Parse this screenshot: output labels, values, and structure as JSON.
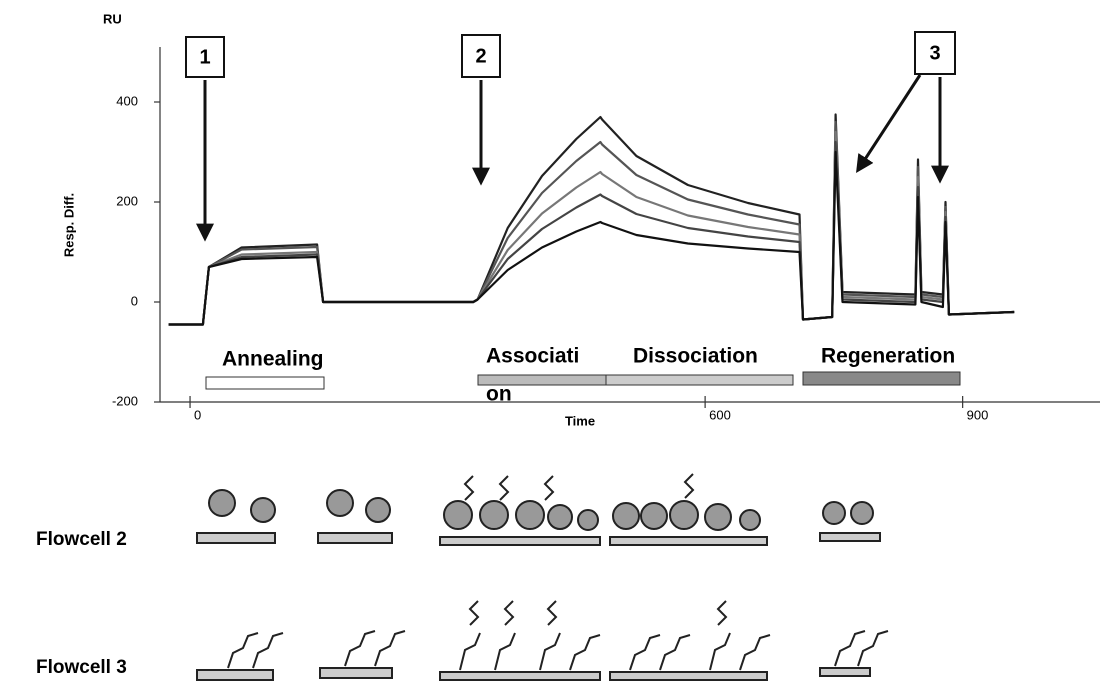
{
  "chart_data": {
    "type": "line",
    "y_axis_unit": "RU",
    "ylabel": "Resp. Diff.",
    "xlabel": "Time",
    "xlim": [
      -35,
      1060
    ],
    "ylim": [
      -200,
      510
    ],
    "xticks": [
      0,
      600,
      900
    ],
    "yticks": [
      -200,
      0,
      200,
      400
    ],
    "x": [
      -25,
      15,
      22,
      60,
      148,
      155,
      330,
      335,
      370,
      410,
      450,
      478,
      480,
      520,
      580,
      650,
      710,
      714,
      748,
      752,
      760,
      845,
      848,
      852,
      877,
      880,
      884,
      960
    ],
    "series": [
      {
        "color": "#222222",
        "values": [
          -45,
          -45,
          70,
          109,
          115,
          0,
          0,
          5,
          148,
          252,
          326,
          370,
          365,
          292,
          234,
          198,
          175,
          -35,
          -30,
          375,
          20,
          15,
          285,
          20,
          15,
          200,
          -25,
          -20
        ]
      },
      {
        "color": "#555555",
        "values": [
          -45,
          -45,
          70,
          105,
          110,
          0,
          0,
          5,
          128,
          218,
          282,
          320,
          315,
          254,
          205,
          175,
          155,
          -35,
          -30,
          360,
          15,
          10,
          270,
          15,
          10,
          190,
          -25,
          -20
        ]
      },
      {
        "color": "#777777",
        "values": [
          -45,
          -45,
          70,
          95,
          100,
          0,
          0,
          5,
          104,
          177,
          229,
          260,
          256,
          210,
          173,
          150,
          135,
          -35,
          -30,
          340,
          10,
          5,
          250,
          10,
          5,
          180,
          -25,
          -20
        ]
      },
      {
        "color": "#444444",
        "values": [
          -45,
          -45,
          70,
          90,
          95,
          0,
          0,
          5,
          86,
          146,
          189,
          215,
          212,
          176,
          148,
          131,
          120,
          -35,
          -30,
          320,
          5,
          0,
          230,
          5,
          0,
          170,
          -25,
          -20
        ]
      },
      {
        "color": "#111111",
        "values": [
          -45,
          -45,
          70,
          86,
          90,
          0,
          0,
          5,
          64,
          109,
          141,
          160,
          158,
          134,
          117,
          107,
          100,
          -35,
          -30,
          300,
          0,
          -5,
          210,
          0,
          -10,
          160,
          -25,
          -20
        ]
      }
    ],
    "step_numbers": [
      "1",
      "2",
      "3"
    ],
    "phases": [
      "Annealing",
      [
        "Associati",
        "on"
      ],
      "Dissociation",
      "Regeneration"
    ]
  },
  "diagram": {
    "flowcells": [
      "Flowcell 2",
      "Flowcell 3"
    ]
  }
}
